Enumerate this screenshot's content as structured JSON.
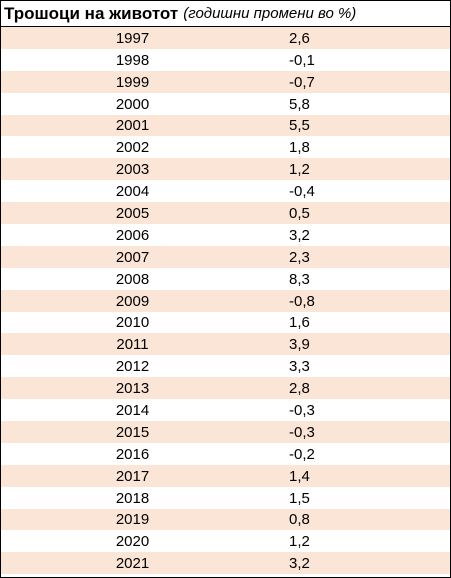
{
  "header": {
    "title": "Трошоци на животот",
    "subtitle": "(годишни промени во %)"
  },
  "colors": {
    "band": "#fbe5d6",
    "plain": "#ffffff",
    "border": "#000000"
  },
  "rows": [
    {
      "year": "1997",
      "value": "2,6"
    },
    {
      "year": "1998",
      "value": "-0,1"
    },
    {
      "year": "1999",
      "value": "-0,7"
    },
    {
      "year": "2000",
      "value": "5,8"
    },
    {
      "year": "2001",
      "value": "5,5"
    },
    {
      "year": "2002",
      "value": "1,8"
    },
    {
      "year": "2003",
      "value": "1,2"
    },
    {
      "year": "2004",
      "value": "-0,4"
    },
    {
      "year": "2005",
      "value": "0,5"
    },
    {
      "year": "2006",
      "value": "3,2"
    },
    {
      "year": "2007",
      "value": "2,3"
    },
    {
      "year": "2008",
      "value": "8,3"
    },
    {
      "year": "2009",
      "value": "-0,8"
    },
    {
      "year": "2010",
      "value": "1,6"
    },
    {
      "year": "2011",
      "value": "3,9"
    },
    {
      "year": "2012",
      "value": "3,3"
    },
    {
      "year": "2013",
      "value": "2,8"
    },
    {
      "year": "2014",
      "value": "-0,3"
    },
    {
      "year": "2015",
      "value": "-0,3"
    },
    {
      "year": "2016",
      "value": "-0,2"
    },
    {
      "year": "2017",
      "value": "1,4"
    },
    {
      "year": "2018",
      "value": "1,5"
    },
    {
      "year": "2019",
      "value": "0,8"
    },
    {
      "year": "2020",
      "value": "1,2"
    },
    {
      "year": "2021",
      "value": "3,2"
    }
  ]
}
